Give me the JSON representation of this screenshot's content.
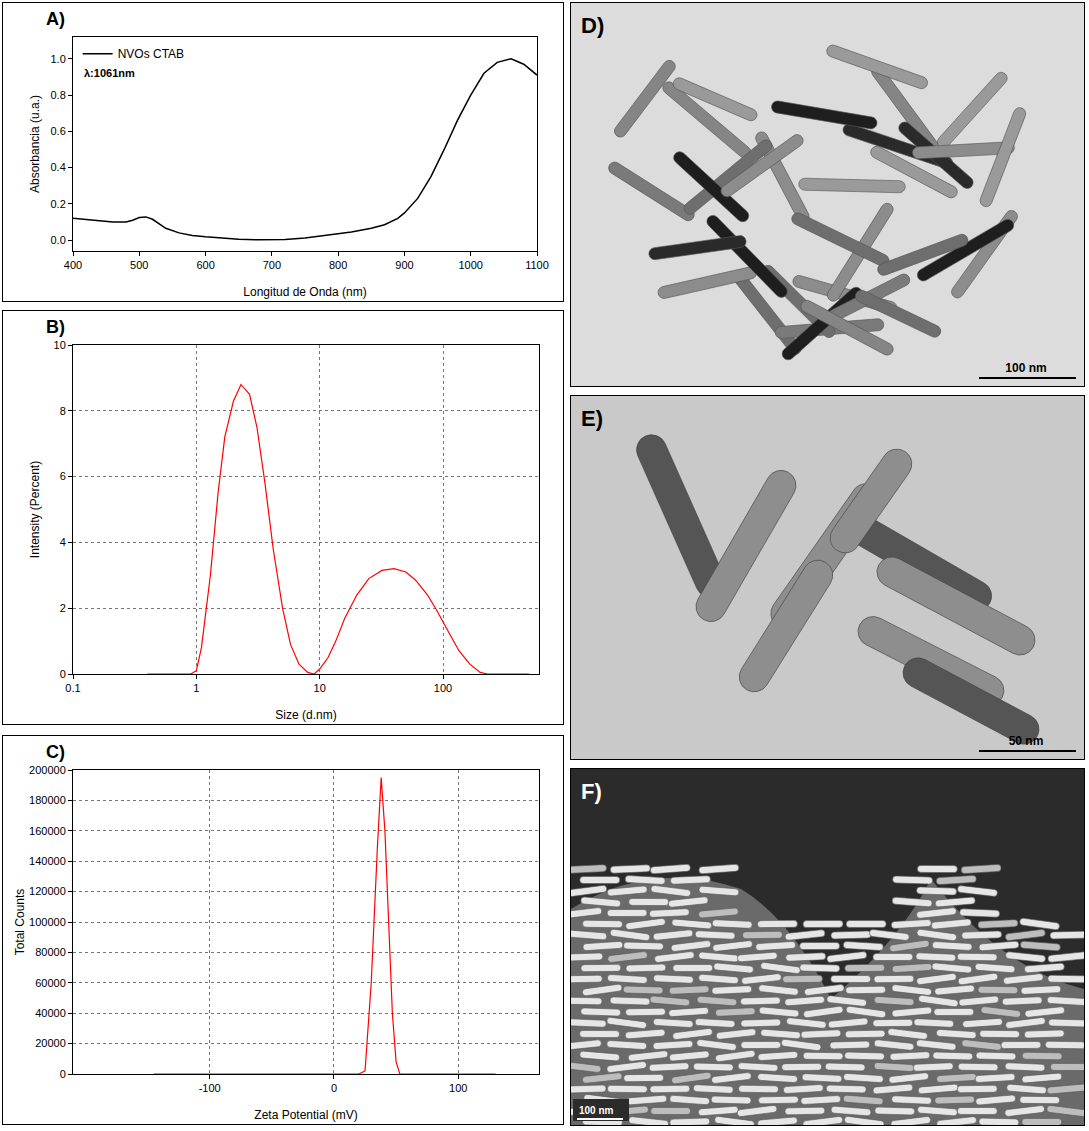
{
  "chart_data": [
    {
      "type": "line",
      "panel_label": "A)",
      "x_label": "Longitud de Onda (nm)",
      "y_label": "Absorbancia (u.a.)",
      "annotations": [
        "λ:1061nm"
      ],
      "legend": "upper left",
      "x": [
        400,
        420,
        440,
        460,
        480,
        490,
        500,
        510,
        520,
        530,
        540,
        560,
        580,
        600,
        620,
        650,
        680,
        700,
        720,
        750,
        780,
        800,
        820,
        850,
        870,
        890,
        900,
        920,
        940,
        960,
        980,
        1000,
        1020,
        1040,
        1061,
        1080,
        1100
      ],
      "series": [
        {
          "name": "NVOs CTAB",
          "color": "#000000",
          "values": [
            0.12,
            0.113,
            0.106,
            0.1,
            0.1,
            0.11,
            0.125,
            0.128,
            0.115,
            0.09,
            0.065,
            0.04,
            0.025,
            0.018,
            0.012,
            0.005,
            0.002,
            0.002,
            0.003,
            0.012,
            0.025,
            0.035,
            0.045,
            0.065,
            0.085,
            0.12,
            0.15,
            0.23,
            0.35,
            0.5,
            0.66,
            0.8,
            0.92,
            0.98,
            1.0,
            0.97,
            0.91
          ]
        }
      ],
      "xlim": [
        400,
        1100
      ],
      "xticks": [
        400,
        500,
        600,
        700,
        800,
        900,
        1000,
        1100
      ],
      "ylim": [
        -0.06,
        1.12
      ],
      "yticks": [
        {
          "value": 0,
          "label": "0.0"
        },
        {
          "value": 0.2,
          "label": "0.2"
        },
        {
          "value": 0.4,
          "label": "0.4"
        },
        {
          "value": 0.6,
          "label": "0.6"
        },
        {
          "value": 0.8,
          "label": "0.8"
        },
        {
          "value": 1,
          "label": "1.0"
        }
      ],
      "grid": false
    },
    {
      "type": "line",
      "panel_label": "B)",
      "x_label": "Size (d.nm)",
      "y_label": "Intensity (Percent)",
      "log": "x",
      "x": [
        0.4,
        0.9,
        1.0,
        1.1,
        1.3,
        1.5,
        1.7,
        2.0,
        2.3,
        2.7,
        3.1,
        3.6,
        4.2,
        5.0,
        5.8,
        6.8,
        8,
        9,
        10,
        11.7,
        13.5,
        16,
        20,
        25,
        32,
        40,
        50,
        60,
        75,
        90,
        110,
        135,
        165,
        200,
        230,
        500
      ],
      "values": [
        0,
        0,
        0.1,
        0.8,
        3,
        5.5,
        7.2,
        8.3,
        8.8,
        8.5,
        7.5,
        5.8,
        3.8,
        2,
        0.9,
        0.3,
        0.05,
        0,
        0.15,
        0.5,
        1,
        1.7,
        2.4,
        2.9,
        3.15,
        3.2,
        3.1,
        2.85,
        2.4,
        1.9,
        1.3,
        0.7,
        0.3,
        0.05,
        0,
        0
      ],
      "color": "#ff0000",
      "xlim": [
        0.1,
        600
      ],
      "xticks": [
        0.1,
        1,
        10,
        100
      ],
      "ylim": [
        0,
        10
      ],
      "yticks": [
        0,
        2,
        4,
        6,
        8,
        10
      ],
      "grid": true
    },
    {
      "type": "line",
      "panel_label": "C)",
      "x_label": "Zeta Potential (mV)",
      "y_label": "Total Counts",
      "x": [
        -145,
        20,
        25,
        30,
        35,
        38,
        41,
        44,
        47,
        50,
        53,
        130
      ],
      "values": [
        0,
        0,
        2000,
        60000,
        150000,
        195000,
        160000,
        100000,
        40000,
        8000,
        0,
        0
      ],
      "color": "#ff0000",
      "xlim": [
        -210,
        165
      ],
      "xticks": [
        -100,
        0,
        100
      ],
      "ylim": [
        0,
        200000
      ],
      "yticks": [
        0,
        20000,
        40000,
        60000,
        80000,
        100000,
        120000,
        140000,
        160000,
        180000,
        200000
      ],
      "grid": true
    }
  ],
  "images": [
    {
      "panel_label": "D)",
      "scale_bar": "100 nm"
    },
    {
      "panel_label": "E)",
      "scale_bar": "50 nm"
    },
    {
      "panel_label": "F)",
      "scale_bar": "100 nm"
    }
  ]
}
